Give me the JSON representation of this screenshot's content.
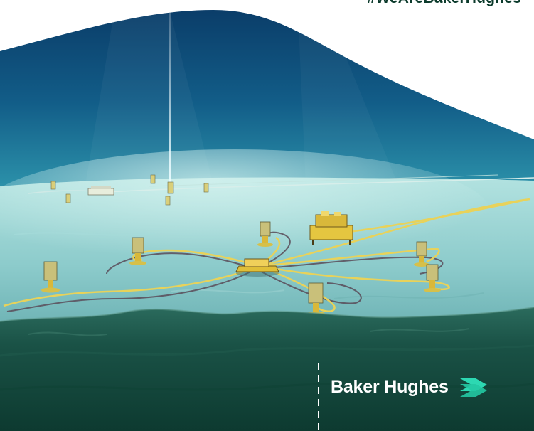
{
  "hashtag": "#WeAreBakerHughes",
  "brand": {
    "name": "Baker Hughes",
    "logo_icon": "baker-hughes-chevron-logo-icon",
    "logo_color": "#2ee0b8"
  },
  "colors": {
    "water_top": "#0a3f6a",
    "water_mid": "#1f7e9c",
    "seabed": "#8fd0cc",
    "seabed_dark": "#14463a",
    "pipeline": "#e8d25a",
    "hashtag": "#0c3b2c"
  }
}
